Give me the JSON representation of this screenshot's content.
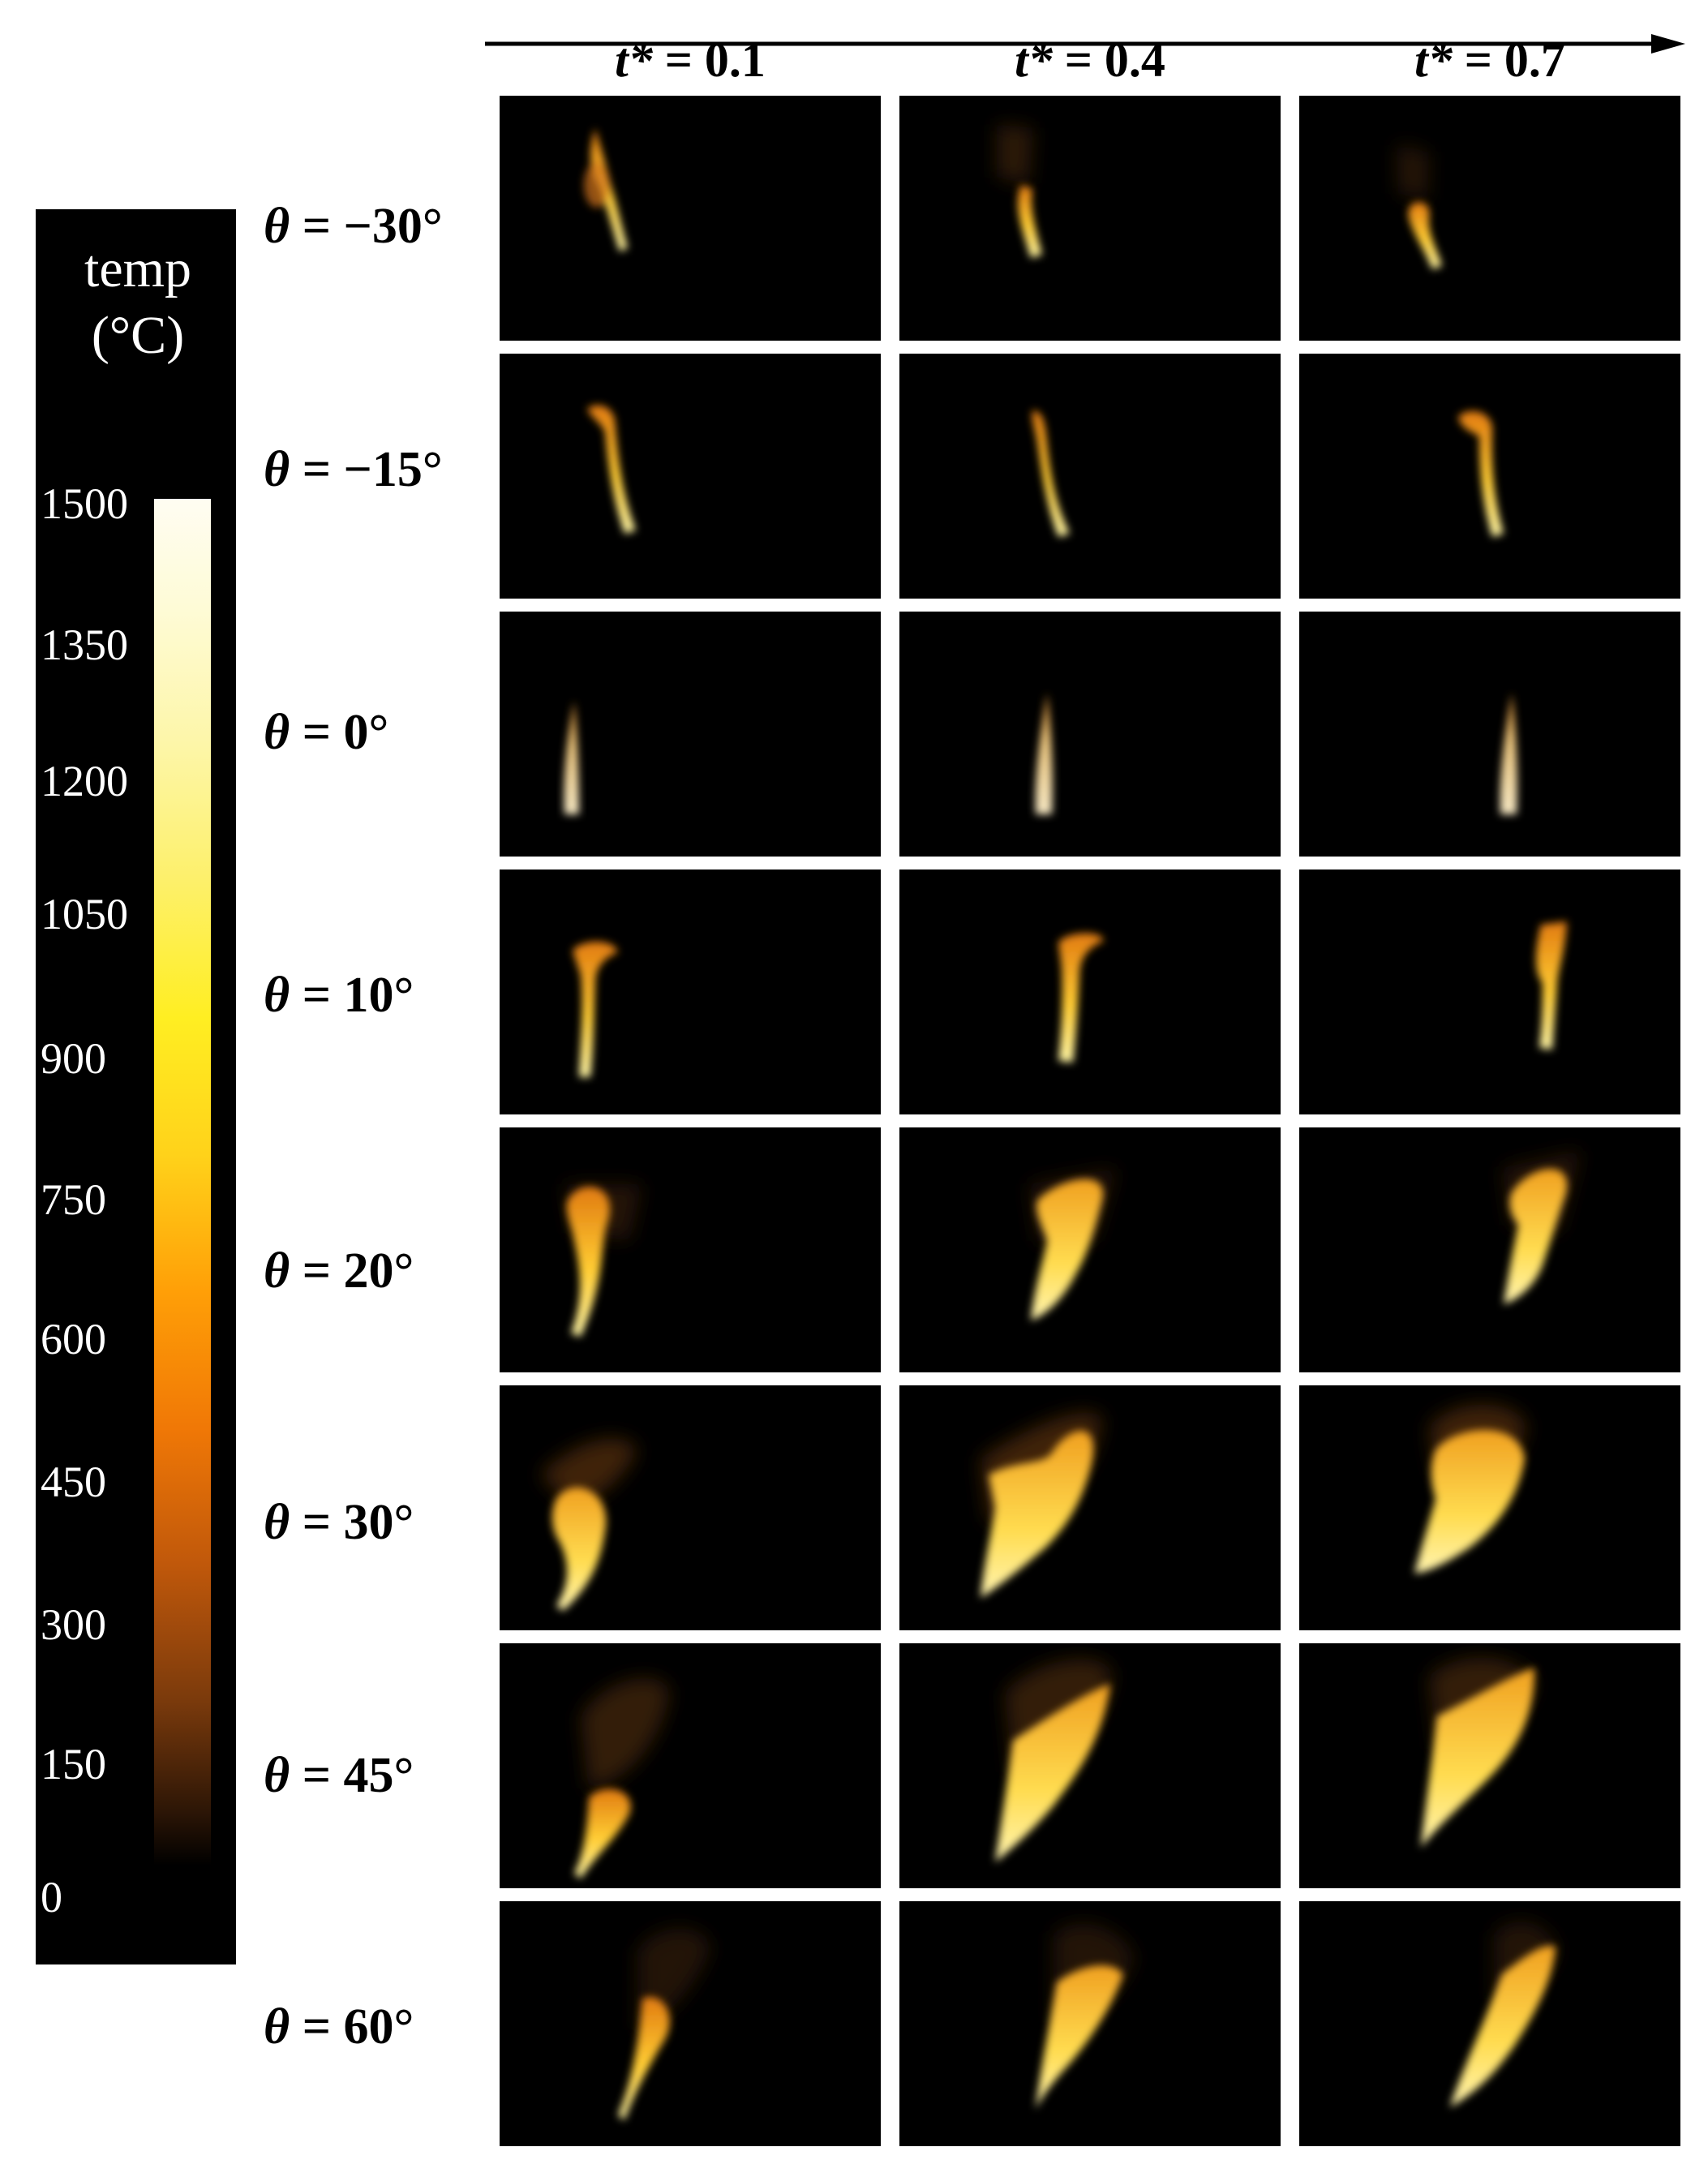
{
  "time_axis": {
    "columns": [
      {
        "symbol": "t*",
        "value": "= 0.1"
      },
      {
        "symbol": "t*",
        "value": "= 0.4"
      },
      {
        "symbol": "t*",
        "value": "= 0.7"
      }
    ]
  },
  "rows": [
    {
      "symbol": "θ",
      "value": "= −30°"
    },
    {
      "symbol": "θ",
      "value": "= −15°"
    },
    {
      "symbol": "θ",
      "value": "= 0°"
    },
    {
      "symbol": "θ",
      "value": "= 10°"
    },
    {
      "symbol": "θ",
      "value": "= 20°"
    },
    {
      "symbol": "θ",
      "value": "= 30°"
    },
    {
      "symbol": "θ",
      "value": "= 45°"
    },
    {
      "symbol": "θ",
      "value": "= 60°"
    }
  ],
  "colorbar": {
    "title_line1": "temp",
    "title_line2": "(°C)",
    "ticks": [
      "1500",
      "1350",
      "1200",
      "1050",
      "900",
      "750",
      "600",
      "450",
      "300",
      "150",
      "0"
    ],
    "colors": [
      "#fffdf2",
      "#fdf06a",
      "#ffee22",
      "#ff9f07",
      "#c0580b",
      "#000000"
    ]
  }
}
